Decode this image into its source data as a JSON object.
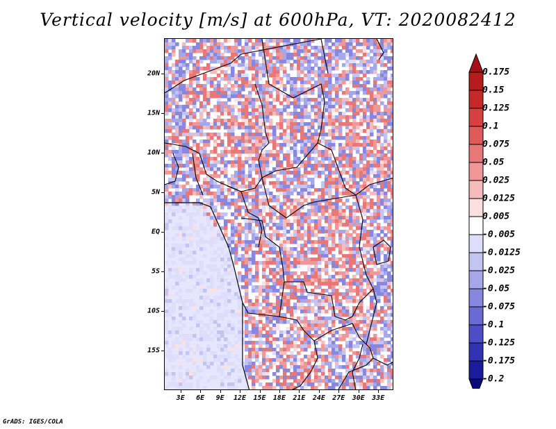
{
  "title": "Vertical velocity [m/s] at 600hPa, VT: 2020082412",
  "credit": "GrADS: IGES/COLA",
  "map": {
    "lat_labels": [
      "20N",
      "15N",
      "10N",
      "5N",
      "EQ",
      "5S",
      "10S",
      "15S"
    ],
    "lat_values": [
      20,
      15,
      10,
      5,
      0,
      -5,
      -10,
      -15
    ],
    "lon_labels": [
      "3E",
      "6E",
      "9E",
      "12E",
      "15E",
      "18E",
      "21E",
      "24E",
      "27E",
      "30E",
      "33E"
    ],
    "lon_values": [
      3,
      6,
      9,
      12,
      15,
      18,
      21,
      24,
      27,
      30,
      33
    ],
    "lat_range": [
      -20,
      24.5
    ],
    "lon_range": [
      0.5,
      35.3
    ],
    "ocean_color": "#e6e6ff",
    "land_color": "#ffffff"
  },
  "colorbar": {
    "labels": [
      "0.175",
      "0.15",
      "0.125",
      "0.1",
      "0.075",
      "0.05",
      "0.025",
      "0.0125",
      "0.005",
      "-0.005",
      "-0.0125",
      "-0.025",
      "-0.05",
      "-0.075",
      "-0.1",
      "-0.125",
      "-0.175",
      "-0.2"
    ],
    "colors": [
      "#a50f15",
      "#b71c1c",
      "#c62828",
      "#d84040",
      "#e05a5a",
      "#e87878",
      "#f09898",
      "#f6bcbc",
      "#fbe0e0",
      "#ffffff",
      "#dedefa",
      "#c4c4f2",
      "#a6a6ea",
      "#8787e0",
      "#6a6ad4",
      "#4d4dc8",
      "#3232b4",
      "#1b1b9c",
      "#0a0a80"
    ]
  }
}
